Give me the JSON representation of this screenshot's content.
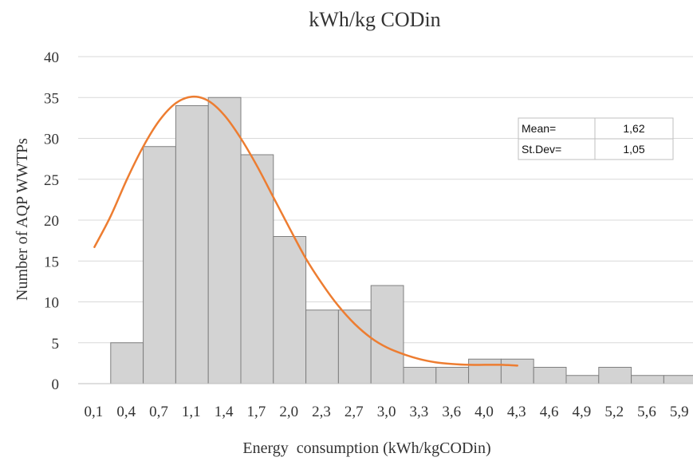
{
  "chart_data": {
    "type": "bar",
    "title": "kWh/kg CODin",
    "xlabel": "Energy  consumption (kWh/kgCODin)",
    "ylabel": "Number of AQP WWTPs",
    "ylim": [
      0,
      40
    ],
    "yticks": [
      0,
      5,
      10,
      15,
      20,
      25,
      30,
      35,
      40
    ],
    "grid": "horizontal",
    "categories": [
      "0,1",
      "0,4",
      "0,7",
      "1,1",
      "1,4",
      "1,7",
      "2,0",
      "2,3",
      "2,7",
      "3,0",
      "3,3",
      "3,6",
      "4,0",
      "4,3",
      "4,6",
      "4,9",
      "5,2",
      "5,6",
      "5,9"
    ],
    "values": [
      0,
      5,
      29,
      34,
      35,
      28,
      18,
      9,
      9,
      12,
      2,
      2,
      3,
      3,
      2,
      1,
      2,
      1,
      1
    ],
    "bar_color": "#d3d3d3",
    "bar_edge_color": "#7f7f7f",
    "curve": {
      "type": "line",
      "color": "#ed7d31",
      "points": [
        [
          0.5,
          16.7
        ],
        [
          1.0,
          20.5
        ],
        [
          1.5,
          25.0
        ],
        [
          2.0,
          29.0
        ],
        [
          2.5,
          32.2
        ],
        [
          3.0,
          34.3
        ],
        [
          3.5,
          35.1
        ],
        [
          4.0,
          34.6
        ],
        [
          4.5,
          32.8
        ],
        [
          5.0,
          30.0
        ],
        [
          5.5,
          26.6
        ],
        [
          6.0,
          22.8
        ],
        [
          6.5,
          19.0
        ],
        [
          7.0,
          15.3
        ],
        [
          7.5,
          12.2
        ],
        [
          8.0,
          9.5
        ],
        [
          8.5,
          7.3
        ],
        [
          9.0,
          5.6
        ],
        [
          9.5,
          4.4
        ],
        [
          10.0,
          3.6
        ],
        [
          10.5,
          3.0
        ],
        [
          11.0,
          2.6
        ],
        [
          11.5,
          2.4
        ],
        [
          12.0,
          2.3
        ],
        [
          12.5,
          2.3
        ],
        [
          13.0,
          2.3
        ],
        [
          13.5,
          2.2
        ]
      ]
    },
    "stats_table": {
      "rows": [
        {
          "label": "Mean=",
          "value": "1,62"
        },
        {
          "label": "St.Dev=",
          "value": "1,05"
        }
      ],
      "position": "top-right"
    }
  }
}
